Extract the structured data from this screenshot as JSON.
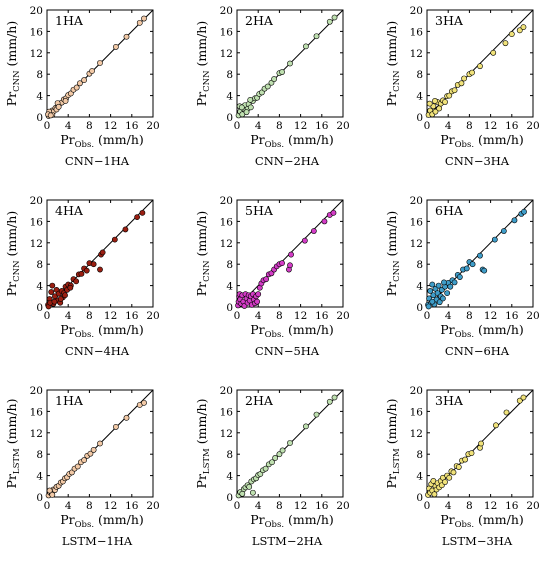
{
  "figure": {
    "x_label_main": "Pr",
    "x_label_sub": "Obs.",
    "x_label_unit": " (mm/h)",
    "y_label_main": "Pr",
    "y_label_unit": " (mm/h)"
  },
  "chart_data": [
    {
      "type": "scatter",
      "panel_label": "1HA",
      "caption": "CNN−1HA",
      "y_sub": "CNN",
      "color": "#f2c9a6",
      "xlim": [
        0,
        20
      ],
      "ylim": [
        0,
        20
      ],
      "xticks": [
        "0",
        "4",
        "8",
        "12",
        "16",
        "20"
      ],
      "yticks": [
        "0",
        "4",
        "8",
        "12",
        "16",
        "20"
      ],
      "reference_line": "y = x",
      "points": [
        [
          0.3,
          0.2
        ],
        [
          0.5,
          0.6
        ],
        [
          0.8,
          0.7
        ],
        [
          1.0,
          1.2
        ],
        [
          1.3,
          1.1
        ],
        [
          1.6,
          1.7
        ],
        [
          2.0,
          1.9
        ],
        [
          2.4,
          2.5
        ],
        [
          2.8,
          2.7
        ],
        [
          3.2,
          3.3
        ],
        [
          3.6,
          3.5
        ],
        [
          4.0,
          4.1
        ],
        [
          4.5,
          4.4
        ],
        [
          5.0,
          5.1
        ],
        [
          5.6,
          5.5
        ],
        [
          6.2,
          6.3
        ],
        [
          7.0,
          6.9
        ],
        [
          8.0,
          8.1
        ],
        [
          8.5,
          8.6
        ],
        [
          10.0,
          10.1
        ],
        [
          13.0,
          13.1
        ],
        [
          15.0,
          15.0
        ],
        [
          17.5,
          17.6
        ],
        [
          18.3,
          18.4
        ],
        [
          0.4,
          1.0
        ],
        [
          1.0,
          0.4
        ],
        [
          2.0,
          2.6
        ],
        [
          3.5,
          3.0
        ],
        [
          0.2,
          0.5
        ],
        [
          0.7,
          0.3
        ],
        [
          1.8,
          1.4
        ],
        [
          2.2,
          1.9
        ]
      ]
    },
    {
      "type": "scatter",
      "panel_label": "2HA",
      "caption": "CNN−2HA",
      "y_sub": "CNN",
      "color": "#bfe0b0",
      "xlim": [
        0,
        20
      ],
      "ylim": [
        0,
        20
      ],
      "xticks": [
        "0",
        "4",
        "8",
        "12",
        "16",
        "20"
      ],
      "yticks": [
        "0",
        "4",
        "8",
        "12",
        "16",
        "20"
      ],
      "reference_line": "y = x",
      "points": [
        [
          0.3,
          0.3
        ],
        [
          0.6,
          1.0
        ],
        [
          1.0,
          0.5
        ],
        [
          1.2,
          1.6
        ],
        [
          1.5,
          2.2
        ],
        [
          2.0,
          1.5
        ],
        [
          2.2,
          2.4
        ],
        [
          2.6,
          1.8
        ],
        [
          3.0,
          3.0
        ],
        [
          3.4,
          3.5
        ],
        [
          3.8,
          3.6
        ],
        [
          4.2,
          4.3
        ],
        [
          4.7,
          4.6
        ],
        [
          5.2,
          5.3
        ],
        [
          5.8,
          5.7
        ],
        [
          6.5,
          6.4
        ],
        [
          7.0,
          7.1
        ],
        [
          8.0,
          8.2
        ],
        [
          8.5,
          8.4
        ],
        [
          10.0,
          10.0
        ],
        [
          13.0,
          13.2
        ],
        [
          15.0,
          15.1
        ],
        [
          17.5,
          17.8
        ],
        [
          18.4,
          18.6
        ],
        [
          0.5,
          2.0
        ],
        [
          1.8,
          0.9
        ],
        [
          0.9,
          1.8
        ],
        [
          2.5,
          3.2
        ]
      ]
    },
    {
      "type": "scatter",
      "panel_label": "3HA",
      "caption": "CNN−3HA",
      "y_sub": "CNN",
      "color": "#f0e27a",
      "xlim": [
        0,
        20
      ],
      "ylim": [
        0,
        20
      ],
      "xticks": [
        "0",
        "4",
        "8",
        "12",
        "16",
        "20"
      ],
      "yticks": [
        "0",
        "4",
        "8",
        "12",
        "16",
        "20"
      ],
      "reference_line": "y = x",
      "points": [
        [
          0.3,
          0.4
        ],
        [
          0.6,
          1.2
        ],
        [
          1.0,
          0.5
        ],
        [
          1.2,
          2.0
        ],
        [
          1.6,
          1.0
        ],
        [
          2.0,
          2.8
        ],
        [
          2.3,
          1.6
        ],
        [
          2.6,
          2.5
        ],
        [
          3.0,
          3.1
        ],
        [
          3.4,
          2.8
        ],
        [
          3.8,
          3.9
        ],
        [
          4.2,
          4.0
        ],
        [
          4.7,
          4.8
        ],
        [
          5.2,
          5.0
        ],
        [
          5.8,
          6.0
        ],
        [
          6.5,
          6.3
        ],
        [
          7.0,
          7.2
        ],
        [
          8.0,
          8.0
        ],
        [
          8.5,
          8.3
        ],
        [
          10.0,
          9.5
        ],
        [
          12.5,
          12.0
        ],
        [
          14.8,
          13.8
        ],
        [
          16.0,
          15.5
        ],
        [
          17.5,
          16.2
        ],
        [
          18.2,
          16.8
        ],
        [
          0.5,
          2.5
        ],
        [
          1.5,
          3.0
        ]
      ]
    },
    {
      "type": "scatter",
      "panel_label": "4HA",
      "caption": "CNN−4HA",
      "y_sub": "CNN",
      "color": "#9a1f12",
      "xlim": [
        0,
        20
      ],
      "ylim": [
        0,
        20
      ],
      "xticks": [
        "0",
        "4",
        "8",
        "12",
        "16",
        "20"
      ],
      "yticks": [
        "0",
        "4",
        "8",
        "12",
        "16",
        "20"
      ],
      "reference_line": "y = x",
      "points": [
        [
          0.2,
          0.4
        ],
        [
          0.5,
          1.5
        ],
        [
          0.8,
          2.8
        ],
        [
          1.0,
          4.0
        ],
        [
          1.2,
          0.6
        ],
        [
          1.5,
          2.0
        ],
        [
          1.8,
          3.2
        ],
        [
          2.0,
          1.2
        ],
        [
          2.2,
          2.5
        ],
        [
          2.5,
          0.8
        ],
        [
          2.8,
          3.0
        ],
        [
          3.0,
          1.8
        ],
        [
          3.2,
          2.6
        ],
        [
          3.5,
          3.8
        ],
        [
          3.8,
          3.2
        ],
        [
          4.0,
          4.2
        ],
        [
          4.5,
          4.0
        ],
        [
          5.0,
          5.2
        ],
        [
          5.5,
          4.8
        ],
        [
          6.0,
          6.1
        ],
        [
          6.5,
          6.2
        ],
        [
          7.0,
          7.2
        ],
        [
          7.5,
          6.8
        ],
        [
          8.0,
          8.2
        ],
        [
          8.8,
          8.0
        ],
        [
          10.0,
          7.0
        ],
        [
          10.2,
          9.8
        ],
        [
          10.5,
          10.2
        ],
        [
          12.8,
          12.6
        ],
        [
          14.8,
          14.5
        ],
        [
          17.0,
          16.8
        ],
        [
          18.0,
          17.6
        ],
        [
          0.3,
          0.1
        ],
        [
          0.6,
          0.8
        ],
        [
          1.4,
          1.0
        ],
        [
          2.6,
          1.5
        ],
        [
          3.4,
          2.2
        ],
        [
          4.4,
          3.6
        ]
      ]
    },
    {
      "type": "scatter",
      "panel_label": "5HA",
      "caption": "CNN−5HA",
      "y_sub": "CNN",
      "color": "#d33cc6",
      "xlim": [
        0,
        20
      ],
      "ylim": [
        0,
        20
      ],
      "xticks": [
        "0",
        "4",
        "8",
        "12",
        "16",
        "20"
      ],
      "yticks": [
        "0",
        "4",
        "8",
        "12",
        "16",
        "20"
      ],
      "reference_line": "y = x",
      "points": [
        [
          0.2,
          0.3
        ],
        [
          0.3,
          1.0
        ],
        [
          0.4,
          2.0
        ],
        [
          0.5,
          2.4
        ],
        [
          0.6,
          1.4
        ],
        [
          0.8,
          0.6
        ],
        [
          1.0,
          2.2
        ],
        [
          1.2,
          1.0
        ],
        [
          1.4,
          0.2
        ],
        [
          1.6,
          2.4
        ],
        [
          1.8,
          1.6
        ],
        [
          2.0,
          0.8
        ],
        [
          2.2,
          2.2
        ],
        [
          2.4,
          1.2
        ],
        [
          2.6,
          2.0
        ],
        [
          2.8,
          0.4
        ],
        [
          3.0,
          2.4
        ],
        [
          3.2,
          1.4
        ],
        [
          3.4,
          0.7
        ],
        [
          3.6,
          2.0
        ],
        [
          3.8,
          1.0
        ],
        [
          4.0,
          2.4
        ],
        [
          4.3,
          3.6
        ],
        [
          4.6,
          4.4
        ],
        [
          5.0,
          5.0
        ],
        [
          5.5,
          5.2
        ],
        [
          6.0,
          6.1
        ],
        [
          6.5,
          6.3
        ],
        [
          7.0,
          7.0
        ],
        [
          7.5,
          7.6
        ],
        [
          8.0,
          8.0
        ],
        [
          8.5,
          8.2
        ],
        [
          9.8,
          7.0
        ],
        [
          10.0,
          7.8
        ],
        [
          10.2,
          9.8
        ],
        [
          12.8,
          12.4
        ],
        [
          14.5,
          14.2
        ],
        [
          16.5,
          16.0
        ],
        [
          17.5,
          17.2
        ],
        [
          18.2,
          17.6
        ]
      ]
    },
    {
      "type": "scatter",
      "panel_label": "6HA",
      "caption": "CNN−6HA",
      "y_sub": "CNN",
      "color": "#3f9dc9",
      "xlim": [
        0,
        20
      ],
      "ylim": [
        0,
        20
      ],
      "xticks": [
        "0",
        "4",
        "8",
        "12",
        "16",
        "20"
      ],
      "yticks": [
        "0",
        "4",
        "8",
        "12",
        "16",
        "20"
      ],
      "reference_line": "y = x",
      "points": [
        [
          0.2,
          0.4
        ],
        [
          0.4,
          1.6
        ],
        [
          0.6,
          3.0
        ],
        [
          0.8,
          0.8
        ],
        [
          1.0,
          4.2
        ],
        [
          1.2,
          2.2
        ],
        [
          1.4,
          0.5
        ],
        [
          1.6,
          3.4
        ],
        [
          1.8,
          1.4
        ],
        [
          2.0,
          2.6
        ],
        [
          2.2,
          4.0
        ],
        [
          2.4,
          0.9
        ],
        [
          2.6,
          2.0
        ],
        [
          2.8,
          3.2
        ],
        [
          3.0,
          1.6
        ],
        [
          3.4,
          3.8
        ],
        [
          3.8,
          2.6
        ],
        [
          4.0,
          4.5
        ],
        [
          4.4,
          3.8
        ],
        [
          4.8,
          5.0
        ],
        [
          5.2,
          4.6
        ],
        [
          5.8,
          6.0
        ],
        [
          6.2,
          5.6
        ],
        [
          6.8,
          7.0
        ],
        [
          7.5,
          7.2
        ],
        [
          8.0,
          8.4
        ],
        [
          8.6,
          8.0
        ],
        [
          10.0,
          9.6
        ],
        [
          10.5,
          7.0
        ],
        [
          10.8,
          6.8
        ],
        [
          12.8,
          12.6
        ],
        [
          14.5,
          14.2
        ],
        [
          16.5,
          16.2
        ],
        [
          17.8,
          17.4
        ],
        [
          18.3,
          17.8
        ],
        [
          0.3,
          0.1
        ],
        [
          1.0,
          1.0
        ],
        [
          3.2,
          4.6
        ]
      ]
    },
    {
      "type": "scatter",
      "panel_label": "1HA",
      "caption": "LSTM−1HA",
      "y_sub": "LSTM",
      "color": "#f2c9a6",
      "xlim": [
        0,
        20
      ],
      "ylim": [
        0,
        20
      ],
      "xticks": [
        "0",
        "4",
        "8",
        "12",
        "16",
        "20"
      ],
      "yticks": [
        "0",
        "4",
        "8",
        "12",
        "16",
        "20"
      ],
      "reference_line": "y = x",
      "points": [
        [
          0.3,
          0.3
        ],
        [
          0.6,
          0.8
        ],
        [
          0.9,
          0.7
        ],
        [
          1.2,
          1.4
        ],
        [
          1.5,
          1.3
        ],
        [
          1.8,
          1.9
        ],
        [
          2.2,
          2.1
        ],
        [
          2.6,
          2.7
        ],
        [
          3.0,
          2.9
        ],
        [
          3.4,
          3.5
        ],
        [
          3.8,
          3.7
        ],
        [
          4.2,
          4.3
        ],
        [
          4.7,
          4.6
        ],
        [
          5.2,
          5.3
        ],
        [
          5.8,
          5.7
        ],
        [
          6.4,
          6.5
        ],
        [
          7.0,
          6.9
        ],
        [
          7.6,
          7.7
        ],
        [
          8.2,
          8.1
        ],
        [
          8.8,
          8.8
        ],
        [
          10.0,
          10.0
        ],
        [
          13.0,
          13.1
        ],
        [
          15.0,
          14.8
        ],
        [
          17.5,
          17.2
        ],
        [
          18.3,
          17.6
        ],
        [
          0.5,
          1.2
        ],
        [
          1.0,
          0.4
        ]
      ]
    },
    {
      "type": "scatter",
      "panel_label": "2HA",
      "caption": "LSTM−2HA",
      "y_sub": "LSTM",
      "color": "#bfe0b0",
      "xlim": [
        0,
        20
      ],
      "ylim": [
        0,
        20
      ],
      "xticks": [
        "0",
        "4",
        "8",
        "12",
        "16",
        "20"
      ],
      "yticks": [
        "0",
        "4",
        "8",
        "12",
        "16",
        "20"
      ],
      "reference_line": "y = x",
      "points": [
        [
          0.3,
          0.3
        ],
        [
          0.6,
          0.9
        ],
        [
          1.0,
          0.6
        ],
        [
          1.3,
          1.5
        ],
        [
          1.6,
          1.8
        ],
        [
          2.0,
          2.2
        ],
        [
          2.3,
          1.9
        ],
        [
          2.7,
          2.9
        ],
        [
          3.0,
          0.8
        ],
        [
          3.2,
          3.3
        ],
        [
          3.6,
          3.5
        ],
        [
          4.0,
          4.1
        ],
        [
          4.4,
          4.3
        ],
        [
          4.9,
          5.0
        ],
        [
          5.4,
          5.3
        ],
        [
          6.0,
          6.1
        ],
        [
          6.6,
          6.5
        ],
        [
          7.2,
          7.3
        ],
        [
          8.0,
          8.0
        ],
        [
          8.6,
          8.7
        ],
        [
          10.0,
          10.1
        ],
        [
          13.0,
          13.2
        ],
        [
          15.0,
          15.4
        ],
        [
          17.5,
          17.8
        ],
        [
          18.4,
          18.6
        ]
      ]
    },
    {
      "type": "scatter",
      "panel_label": "3HA",
      "caption": "LSTM−3HA",
      "y_sub": "LSTM",
      "color": "#f0e27a",
      "xlim": [
        0,
        20
      ],
      "ylim": [
        0,
        20
      ],
      "xticks": [
        "0",
        "4",
        "8",
        "12",
        "16",
        "20"
      ],
      "yticks": [
        "0",
        "4",
        "8",
        "12",
        "16",
        "20"
      ],
      "reference_line": "y = x",
      "points": [
        [
          0.2,
          0.4
        ],
        [
          0.4,
          1.6
        ],
        [
          0.6,
          0.8
        ],
        [
          0.8,
          2.4
        ],
        [
          1.0,
          1.2
        ],
        [
          1.2,
          3.0
        ],
        [
          1.4,
          0.5
        ],
        [
          1.6,
          2.0
        ],
        [
          1.8,
          1.4
        ],
        [
          2.0,
          2.6
        ],
        [
          2.3,
          1.8
        ],
        [
          2.6,
          3.0
        ],
        [
          2.8,
          2.2
        ],
        [
          3.0,
          3.6
        ],
        [
          3.4,
          2.8
        ],
        [
          3.8,
          4.0
        ],
        [
          4.2,
          3.6
        ],
        [
          4.6,
          4.8
        ],
        [
          5.0,
          4.6
        ],
        [
          5.6,
          5.8
        ],
        [
          6.0,
          5.6
        ],
        [
          6.6,
          6.8
        ],
        [
          7.2,
          7.0
        ],
        [
          7.8,
          8.0
        ],
        [
          8.4,
          8.2
        ],
        [
          10.0,
          9.2
        ],
        [
          10.2,
          10.0
        ],
        [
          13.0,
          13.4
        ],
        [
          15.0,
          15.8
        ],
        [
          17.5,
          18.0
        ],
        [
          18.2,
          18.6
        ]
      ]
    }
  ]
}
